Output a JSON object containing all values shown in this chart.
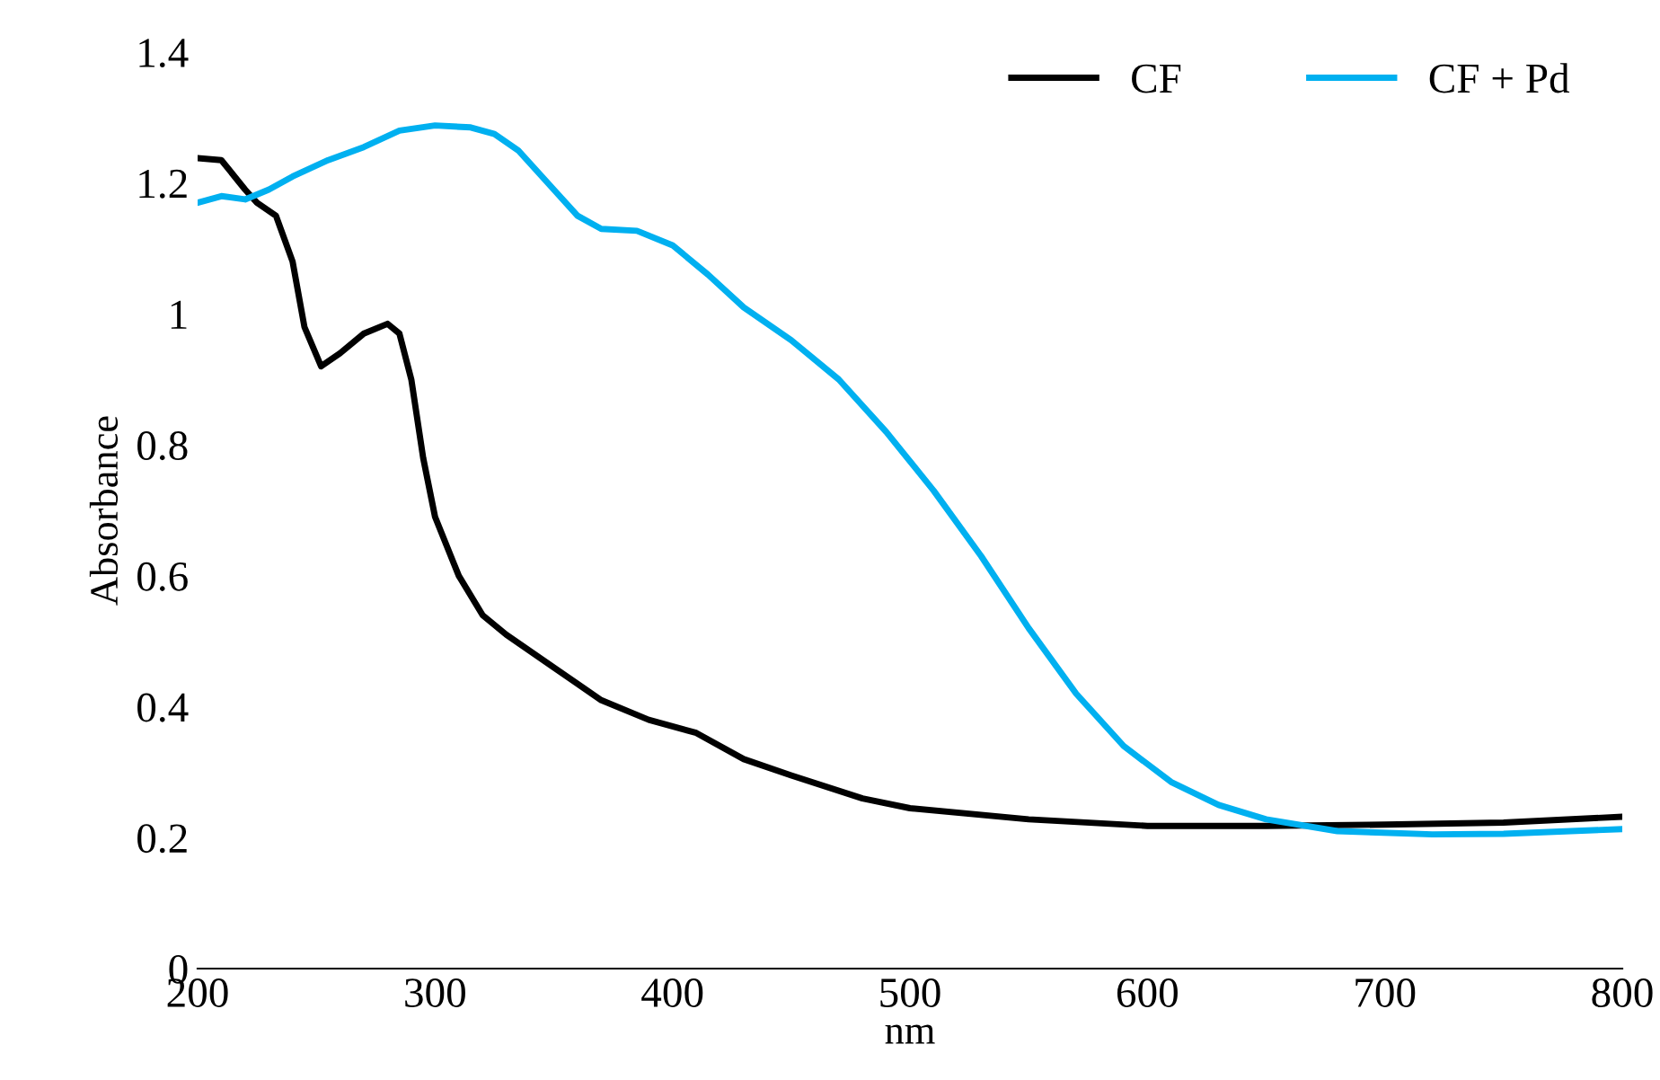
{
  "chart_data": {
    "type": "line",
    "xlabel": "nm",
    "ylabel": "Absorbance",
    "xlim": [
      200,
      800
    ],
    "xticks": [
      200,
      300,
      400,
      500,
      600,
      700,
      800
    ],
    "ylim": [
      0,
      1.4
    ],
    "yticks": [
      0,
      0.2,
      0.4,
      0.6,
      0.8,
      1,
      1.2,
      1.4
    ],
    "grid": false,
    "legend": "top right",
    "marker": "none",
    "line_style": "solid",
    "series": [
      {
        "name": "CF",
        "color": "#000000",
        "x": [
          200,
          210,
          220,
          225,
          233,
          240,
          245,
          252,
          260,
          270,
          280,
          285,
          290,
          295,
          300,
          310,
          320,
          330,
          350,
          370,
          390,
          410,
          430,
          450,
          480,
          500,
          550,
          600,
          650,
          700,
          750,
          800
        ],
        "values": [
          1.238,
          1.235,
          1.19,
          1.17,
          1.15,
          1.08,
          0.98,
          0.92,
          0.94,
          0.97,
          0.985,
          0.97,
          0.9,
          0.78,
          0.69,
          0.6,
          0.54,
          0.51,
          0.46,
          0.41,
          0.38,
          0.36,
          0.32,
          0.295,
          0.26,
          0.245,
          0.228,
          0.218,
          0.218,
          0.22,
          0.223,
          0.232
        ]
      },
      {
        "name": "CF + Pd",
        "color": "#00b0f0",
        "x": [
          200,
          210,
          220,
          230,
          240,
          255,
          270,
          285,
          300,
          315,
          325,
          335,
          350,
          360,
          370,
          385,
          400,
          415,
          430,
          450,
          470,
          490,
          510,
          530,
          550,
          570,
          590,
          610,
          630,
          650,
          680,
          720,
          750,
          800
        ],
        "values": [
          1.17,
          1.18,
          1.175,
          1.19,
          1.21,
          1.235,
          1.255,
          1.28,
          1.288,
          1.285,
          1.275,
          1.25,
          1.19,
          1.15,
          1.13,
          1.127,
          1.105,
          1.06,
          1.01,
          0.96,
          0.9,
          0.82,
          0.73,
          0.63,
          0.52,
          0.42,
          0.34,
          0.285,
          0.25,
          0.228,
          0.21,
          0.205,
          0.206,
          0.213
        ]
      }
    ]
  }
}
